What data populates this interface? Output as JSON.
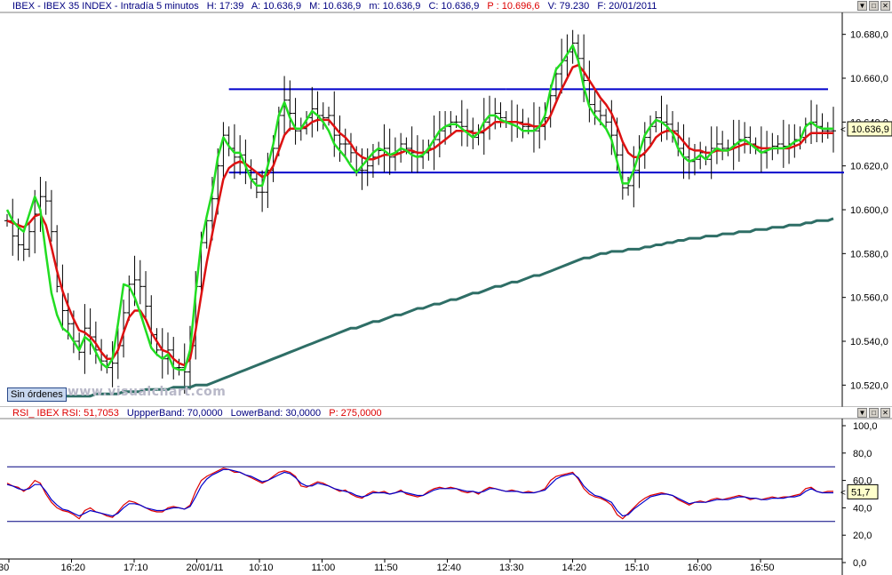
{
  "main_header": {
    "symbol": "IBEX - IBEX 35 INDEX - Intradía 5 minutos",
    "time": "H: 17:39",
    "open": "A: 10.636,9",
    "high": "M: 10.636,9",
    "low": "m: 10.636,9",
    "close": "C: 10.636,9",
    "p": "P : 10.696,6",
    "volume": "V: 79.230",
    "date": "F: 20/01/2011"
  },
  "rsi_header": {
    "name": "RSI_ IBEX RSI: 51,7053",
    "upper": "UppperBand: 70,0000",
    "lower": "LowerBand: 30,0000",
    "p": "P: 275,0000"
  },
  "badge_label": "Sin órdenes",
  "watermark": "www.visualchart.com",
  "window_buttons": [
    "▼",
    "□",
    "✕"
  ],
  "colors": {
    "price_bars": "#000000",
    "ma_fast": "#22dd22",
    "ma_mid": "#dd1111",
    "ma_slow": "#2e6e66",
    "channel": "#0000cc",
    "rsi_red": "#dd0000",
    "rsi_blue": "#0000cc",
    "bands": "#000080"
  },
  "chart_data": [
    {
      "type": "line",
      "title": "IBEX - IBEX 35 INDEX - Intradía 5 minutos",
      "x_ticks": [
        "30",
        "16:20",
        "17:10",
        "20/01/11",
        "10:10",
        "11:00",
        "11:50",
        "12:40",
        "13:30",
        "14:20",
        "15:10",
        "16:00",
        "16:50"
      ],
      "y_ticks": [
        "10.680,0",
        "10.660,0",
        "10.640,0",
        "10.620,0",
        "10.600,0",
        "10.580,0",
        "10.560,0",
        "10.540,0",
        "10.520,0"
      ],
      "ylim": [
        10510,
        10690
      ],
      "last_value_label": "10.636,9",
      "last_value": 10636.9,
      "channel_upper": 10655,
      "channel_lower": 10617,
      "x_count": 150,
      "price_close": [
        10595,
        10588,
        10584,
        10582,
        10590,
        10598,
        10606,
        10604,
        10590,
        10565,
        10554,
        10548,
        10540,
        10535,
        10546,
        10542,
        10536,
        10531,
        10528,
        10530,
        10538,
        10553,
        10566,
        10568,
        10565,
        10556,
        10543,
        10536,
        10532,
        10536,
        10528,
        10528,
        10526,
        10538,
        10565,
        10585,
        10595,
        10605,
        10620,
        10634,
        10628,
        10624,
        10625,
        10618,
        10614,
        10608,
        10608,
        10618,
        10628,
        10643,
        10650,
        10644,
        10636,
        10637,
        10642,
        10646,
        10643,
        10642,
        10643,
        10634,
        10630,
        10630,
        10626,
        10618,
        10618,
        10620,
        10624,
        10627,
        10628,
        10624,
        10626,
        10630,
        10628,
        10626,
        10624,
        10626,
        10628,
        10632,
        10636,
        10638,
        10640,
        10640,
        10638,
        10636,
        10633,
        10635,
        10640,
        10643,
        10644,
        10642,
        10640,
        10640,
        10640,
        10638,
        10638,
        10636,
        10638,
        10642,
        10652,
        10662,
        10668,
        10672,
        10676,
        10669,
        10659,
        10648,
        10645,
        10643,
        10640,
        10634,
        10625,
        10610,
        10611,
        10618,
        10625,
        10633,
        10638,
        10642,
        10640,
        10639,
        10636,
        10628,
        10624,
        10622,
        10623,
        10626,
        10623,
        10628,
        10630,
        10628,
        10628,
        10630,
        10632,
        10633,
        10630,
        10628,
        10626,
        10628,
        10629,
        10630,
        10629,
        10630,
        10632,
        10633,
        10639,
        10640,
        10638,
        10636,
        10636,
        10636
      ],
      "ma_fast": [
        10600,
        10595,
        10592,
        10590,
        10598,
        10606,
        10600,
        10580,
        10562,
        10552,
        10546,
        10544,
        10540,
        10536,
        10542,
        10540,
        10535,
        10530,
        10528,
        10532,
        10548,
        10566,
        10565,
        10560,
        10553,
        10545,
        10537,
        10534,
        10532,
        10534,
        10528,
        10527,
        10527,
        10536,
        10562,
        10585,
        10597,
        10608,
        10624,
        10633,
        10629,
        10626,
        10626,
        10620,
        10614,
        10611,
        10611,
        10620,
        10630,
        10643,
        10649,
        10642,
        10637,
        10637,
        10641,
        10645,
        10643,
        10640,
        10636,
        10630,
        10627,
        10624,
        10620,
        10617,
        10620,
        10623,
        10626,
        10628,
        10627,
        10625,
        10626,
        10628,
        10627,
        10625,
        10624,
        10625,
        10628,
        10632,
        10636,
        10638,
        10639,
        10639,
        10637,
        10635,
        10633,
        10635,
        10640,
        10643,
        10643,
        10641,
        10640,
        10639,
        10638,
        10636,
        10636,
        10636,
        10638,
        10643,
        10655,
        10664,
        10667,
        10671,
        10675,
        10668,
        10656,
        10647,
        10643,
        10640,
        10637,
        10632,
        10622,
        10612,
        10612,
        10618,
        10626,
        10634,
        10638,
        10641,
        10640,
        10638,
        10635,
        10628,
        10624,
        10622,
        10623,
        10625,
        10623,
        10626,
        10628,
        10627,
        10627,
        10629,
        10631,
        10632,
        10630,
        10628,
        10626,
        10627,
        10628,
        10628,
        10628,
        10629,
        10631,
        10632,
        10638,
        10640,
        10638,
        10637,
        10637,
        10637
      ],
      "ma_mid": [
        10595,
        10594,
        10593,
        10592,
        10594,
        10597,
        10598,
        10593,
        10583,
        10572,
        10563,
        10556,
        10550,
        10545,
        10544,
        10542,
        10539,
        10535,
        10532,
        10532,
        10536,
        10544,
        10551,
        10554,
        10554,
        10550,
        10544,
        10540,
        10536,
        10535,
        10532,
        10530,
        10529,
        10532,
        10545,
        10561,
        10576,
        10589,
        10602,
        10614,
        10619,
        10621,
        10622,
        10621,
        10619,
        10617,
        10615,
        10616,
        10620,
        10627,
        10634,
        10637,
        10637,
        10637,
        10638,
        10640,
        10641,
        10641,
        10641,
        10638,
        10635,
        10633,
        10630,
        10626,
        10624,
        10623,
        10623,
        10624,
        10625,
        10625,
        10625,
        10626,
        10627,
        10627,
        10626,
        10626,
        10627,
        10628,
        10630,
        10632,
        10634,
        10636,
        10636,
        10636,
        10635,
        10635,
        10636,
        10638,
        10640,
        10640,
        10640,
        10640,
        10640,
        10639,
        10639,
        10638,
        10638,
        10639,
        10643,
        10649,
        10655,
        10660,
        10665,
        10666,
        10663,
        10659,
        10655,
        10651,
        10648,
        10644,
        10638,
        10631,
        10626,
        10624,
        10624,
        10626,
        10629,
        10633,
        10635,
        10636,
        10636,
        10634,
        10631,
        10628,
        10627,
        10627,
        10626,
        10626,
        10627,
        10627,
        10627,
        10628,
        10629,
        10630,
        10630,
        10629,
        10628,
        10628,
        10628,
        10628,
        10628,
        10628,
        10629,
        10630,
        10633,
        10635,
        10635,
        10635,
        10635,
        10635
      ],
      "ma_slow": [
        10514,
        10514,
        10514,
        10514,
        10514,
        10514,
        10514,
        10514,
        10514,
        10514,
        10515,
        10515,
        10515,
        10515,
        10515,
        10515,
        10516,
        10516,
        10516,
        10516,
        10516,
        10517,
        10517,
        10517,
        10517,
        10518,
        10518,
        10518,
        10518,
        10518,
        10519,
        10519,
        10519,
        10519,
        10520,
        10520,
        10520,
        10521,
        10522,
        10523,
        10524,
        10525,
        10526,
        10527,
        10528,
        10529,
        10530,
        10531,
        10532,
        10533,
        10534,
        10535,
        10536,
        10537,
        10538,
        10539,
        10540,
        10541,
        10542,
        10543,
        10544,
        10545,
        10546,
        10546,
        10547,
        10548,
        10549,
        10549,
        10550,
        10551,
        10552,
        10552,
        10553,
        10554,
        10555,
        10555,
        10556,
        10557,
        10557,
        10558,
        10559,
        10559,
        10560,
        10561,
        10562,
        10562,
        10563,
        10564,
        10565,
        10565,
        10566,
        10567,
        10567,
        10568,
        10569,
        10570,
        10570,
        10571,
        10572,
        10573,
        10574,
        10575,
        10576,
        10577,
        10578,
        10578,
        10579,
        10580,
        10580,
        10581,
        10581,
        10581,
        10582,
        10582,
        10582,
        10583,
        10583,
        10584,
        10584,
        10585,
        10585,
        10586,
        10586,
        10587,
        10587,
        10587,
        10588,
        10588,
        10588,
        10589,
        10589,
        10589,
        10590,
        10590,
        10590,
        10591,
        10591,
        10591,
        10592,
        10592,
        10592,
        10593,
        10593,
        10593,
        10594,
        10594,
        10595,
        10595,
        10595,
        10596
      ]
    },
    {
      "type": "line",
      "title": "RSI_ IBEX RSI: 51,7053",
      "y_ticks": [
        "100,0",
        "80,0",
        "60,0",
        "40,0",
        "20,0",
        "0,0"
      ],
      "ylim": [
        0,
        100
      ],
      "upper_band": 70,
      "lower_band": 30,
      "last_value_label": "51,7",
      "last_value": 51.7,
      "x_count": 150,
      "rsi_red": [
        58,
        56,
        55,
        52,
        55,
        60,
        58,
        50,
        44,
        40,
        38,
        37,
        35,
        32,
        38,
        40,
        37,
        36,
        34,
        33,
        37,
        42,
        45,
        44,
        42,
        40,
        38,
        37,
        37,
        40,
        41,
        40,
        39,
        42,
        52,
        60,
        63,
        65,
        67,
        69,
        68,
        66,
        66,
        64,
        62,
        60,
        58,
        60,
        63,
        66,
        67,
        66,
        63,
        56,
        55,
        57,
        59,
        58,
        56,
        54,
        52,
        53,
        50,
        48,
        47,
        50,
        52,
        51,
        52,
        50,
        51,
        53,
        50,
        49,
        48,
        49,
        52,
        54,
        55,
        54,
        55,
        54,
        52,
        51,
        52,
        50,
        53,
        55,
        54,
        53,
        52,
        53,
        52,
        51,
        52,
        51,
        52,
        54,
        60,
        63,
        64,
        65,
        66,
        61,
        54,
        50,
        48,
        47,
        45,
        42,
        35,
        32,
        36,
        40,
        44,
        47,
        49,
        50,
        51,
        50,
        49,
        46,
        44,
        42,
        44,
        45,
        44,
        46,
        47,
        46,
        47,
        48,
        49,
        48,
        46,
        47,
        46,
        47,
        48,
        47,
        48,
        48,
        49,
        50,
        54,
        55,
        52,
        51,
        52,
        52
      ],
      "rsi_blue": [
        57,
        56,
        54,
        53,
        54,
        57,
        57,
        52,
        46,
        42,
        39,
        38,
        36,
        34,
        36,
        38,
        37,
        36,
        35,
        34,
        36,
        40,
        43,
        43,
        42,
        40,
        39,
        38,
        38,
        39,
        40,
        40,
        39,
        41,
        48,
        56,
        61,
        64,
        66,
        68,
        68,
        67,
        66,
        64,
        63,
        61,
        59,
        60,
        62,
        64,
        66,
        65,
        62,
        58,
        56,
        56,
        58,
        57,
        56,
        54,
        53,
        52,
        51,
        49,
        48,
        49,
        51,
        51,
        51,
        50,
        51,
        52,
        51,
        50,
        49,
        49,
        51,
        53,
        54,
        54,
        54,
        54,
        53,
        52,
        52,
        51,
        52,
        54,
        54,
        53,
        52,
        52,
        52,
        51,
        51,
        51,
        52,
        53,
        57,
        61,
        63,
        64,
        65,
        62,
        56,
        52,
        49,
        48,
        46,
        44,
        38,
        34,
        35,
        39,
        42,
        45,
        48,
        49,
        50,
        50,
        49,
        47,
        45,
        43,
        44,
        44,
        44,
        45,
        46,
        46,
        46,
        47,
        48,
        48,
        47,
        47,
        46,
        46,
        47,
        47,
        47,
        48,
        48,
        49,
        52,
        54,
        52,
        51,
        51,
        51
      ]
    }
  ]
}
